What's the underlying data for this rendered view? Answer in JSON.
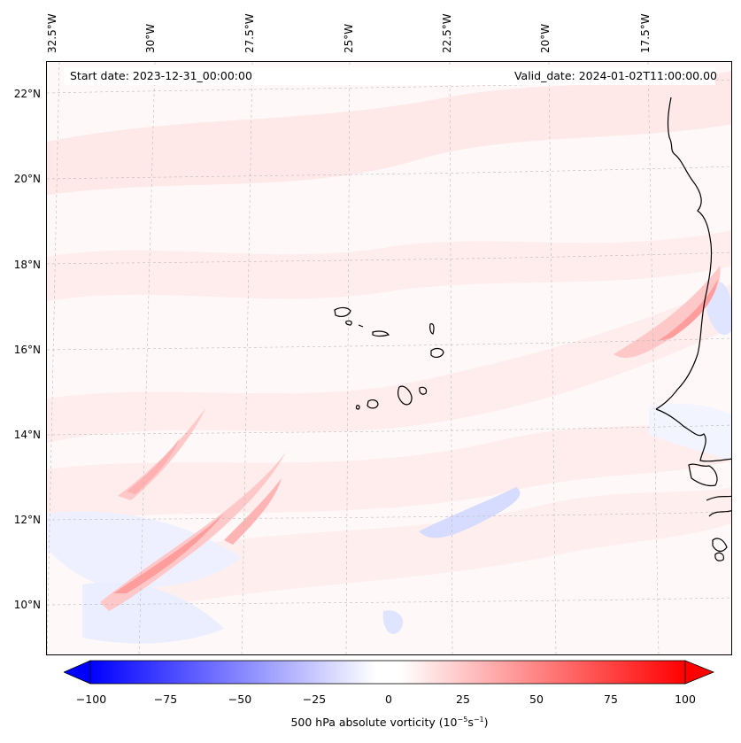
{
  "header": {
    "start_date": "Start date: 2023-12-31_00:00:00",
    "valid_date": "Valid_date: 2024-01-02T11:00:00.00"
  },
  "map": {
    "lon_labels": [
      "32.5°W",
      "30°W",
      "27.5°W",
      "25°W",
      "22.5°W",
      "20°W",
      "17.5°W"
    ],
    "lat_labels": [
      "22°N",
      "20°N",
      "18°N",
      "16°N",
      "14°N",
      "12°N",
      "10°N"
    ],
    "feature": "Cape Verde islands and West African coastline",
    "field_colors": {
      "background": "#fff8f8",
      "positive_light": "#ffe4e4",
      "positive_mid": "#ffc8c8",
      "positive_strong": "#ff9c9c",
      "negative_light": "#e8ecff",
      "negative_mid": "#c4ccff"
    }
  },
  "colorbar": {
    "ticks": [
      "−100",
      "−75",
      "−50",
      "−25",
      "0",
      "25",
      "50",
      "75",
      "100"
    ],
    "label_prefix": "500 hPa absolute vorticity (10",
    "label_exp1": "−5",
    "label_mid": "s",
    "label_exp2": "−1",
    "label_suffix": ")",
    "min_color": "#0000ff",
    "max_color": "#ff0000"
  }
}
